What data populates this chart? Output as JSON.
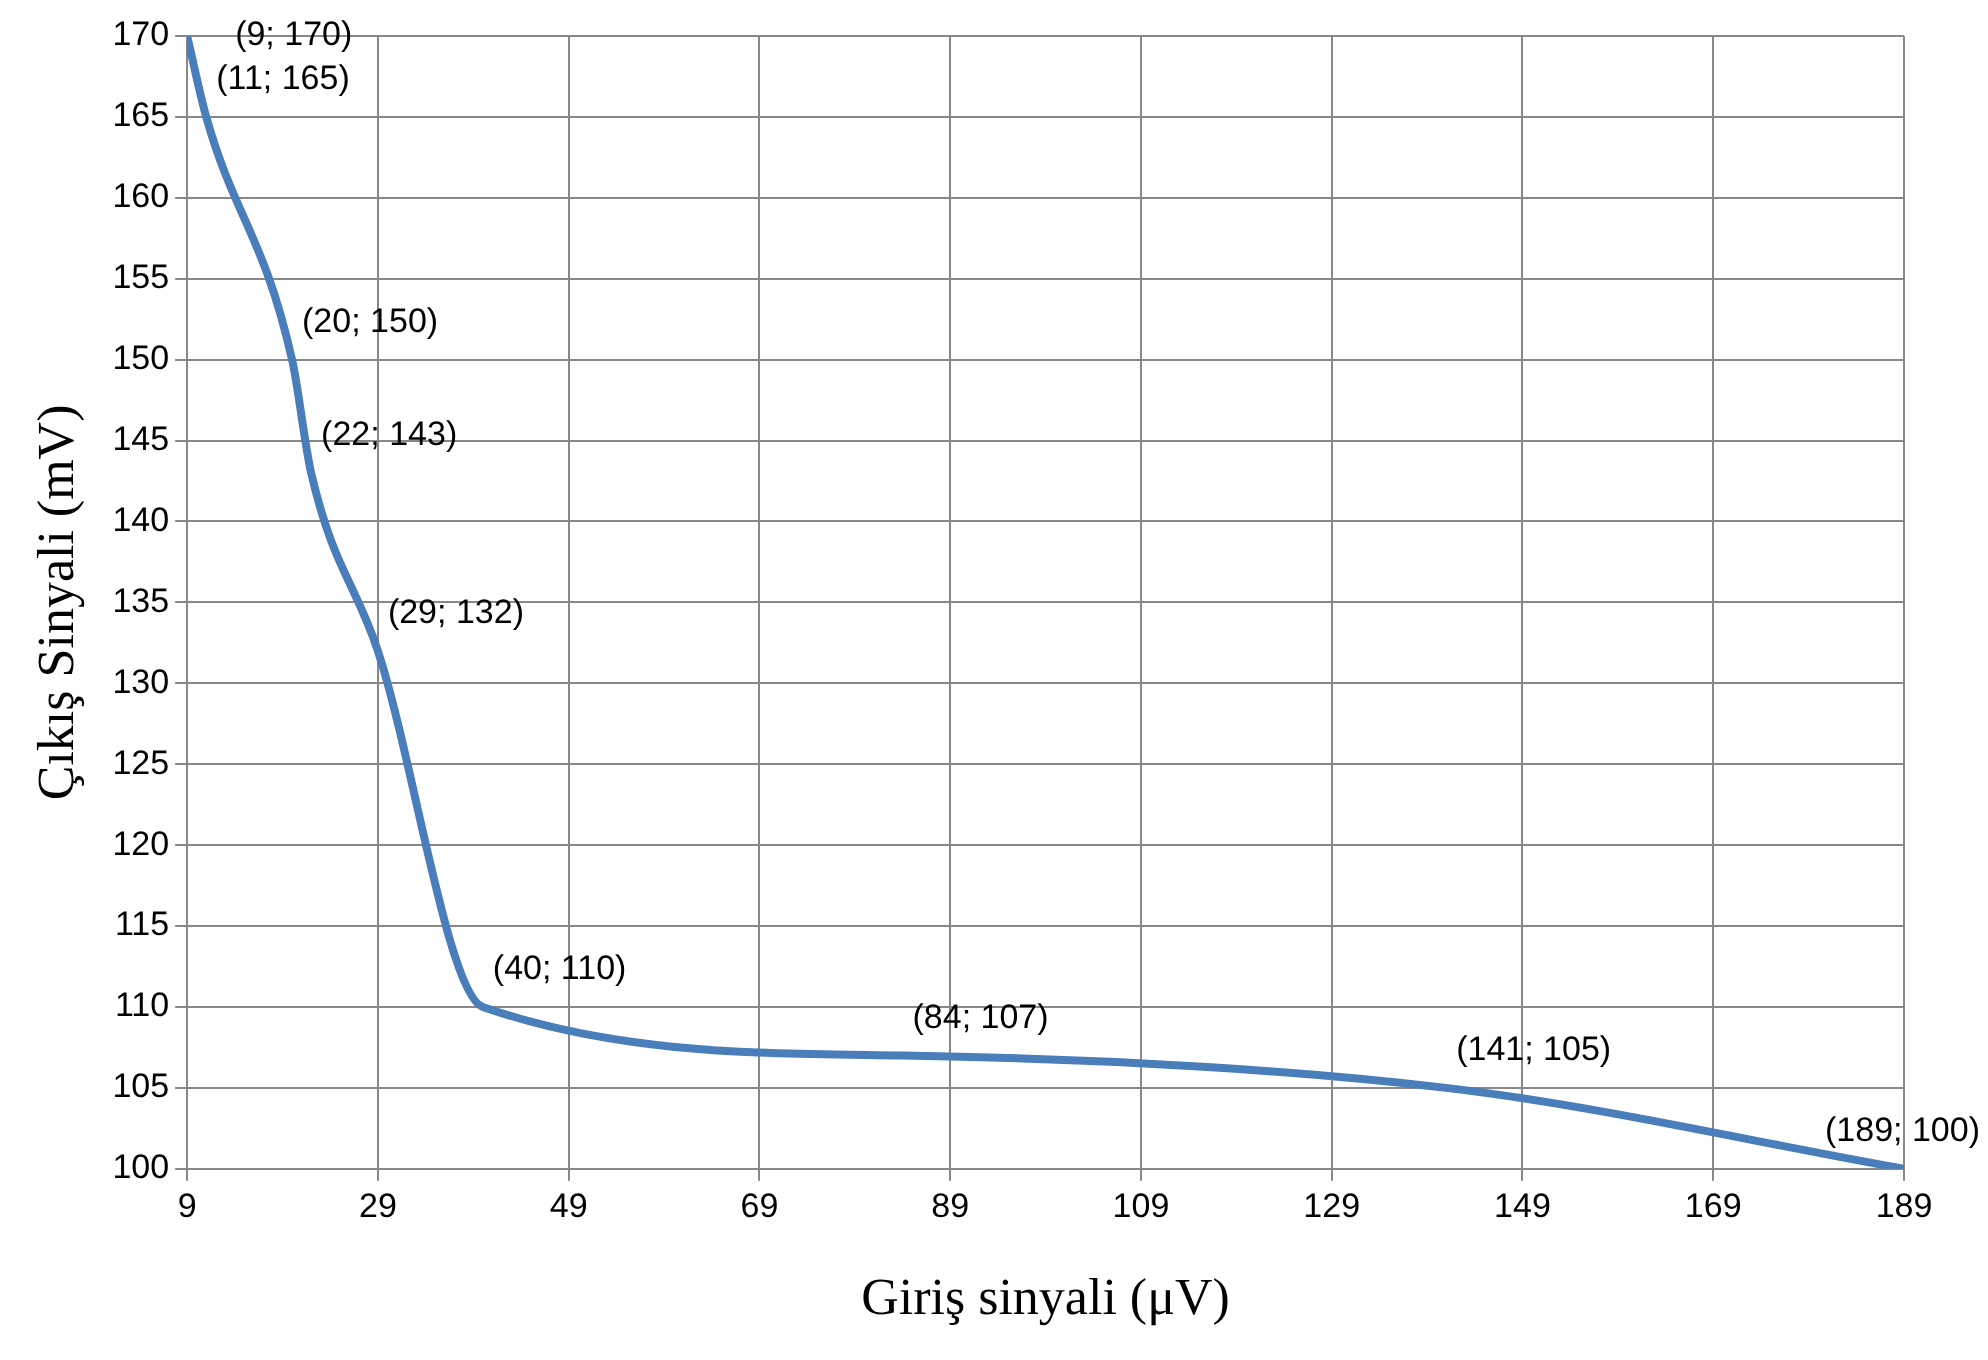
{
  "chart_data": {
    "type": "line",
    "xlabel": "Giriş sinyali (μV)",
    "ylabel": "Çıkış Sinyali (mV)",
    "x": [
      9,
      11,
      20,
      22,
      29,
      40,
      84,
      141,
      189
    ],
    "series": [
      {
        "color": "#4a7ebb",
        "values": [
          170,
          165,
          150,
          143,
          132,
          110,
          107,
          105,
          100
        ],
        "value_labels": [
          "(9; 170)",
          "(11; 165)",
          "(20; 150)",
          "(22; 143)",
          "(29; 132)",
          "(40; 110)",
          "(84; 107)",
          "(141; 105)",
          "(189; 100)"
        ]
      }
    ],
    "xlim": [
      9,
      189
    ],
    "xticks": [
      9,
      29,
      49,
      69,
      89,
      109,
      129,
      149,
      169,
      189
    ],
    "ylim": [
      100,
      170
    ],
    "yticks": [
      100,
      105,
      110,
      115,
      120,
      125,
      130,
      135,
      140,
      145,
      150,
      155,
      160,
      165,
      170
    ],
    "grid": true,
    "legend": false,
    "marker": "none",
    "line_style": "solid"
  }
}
